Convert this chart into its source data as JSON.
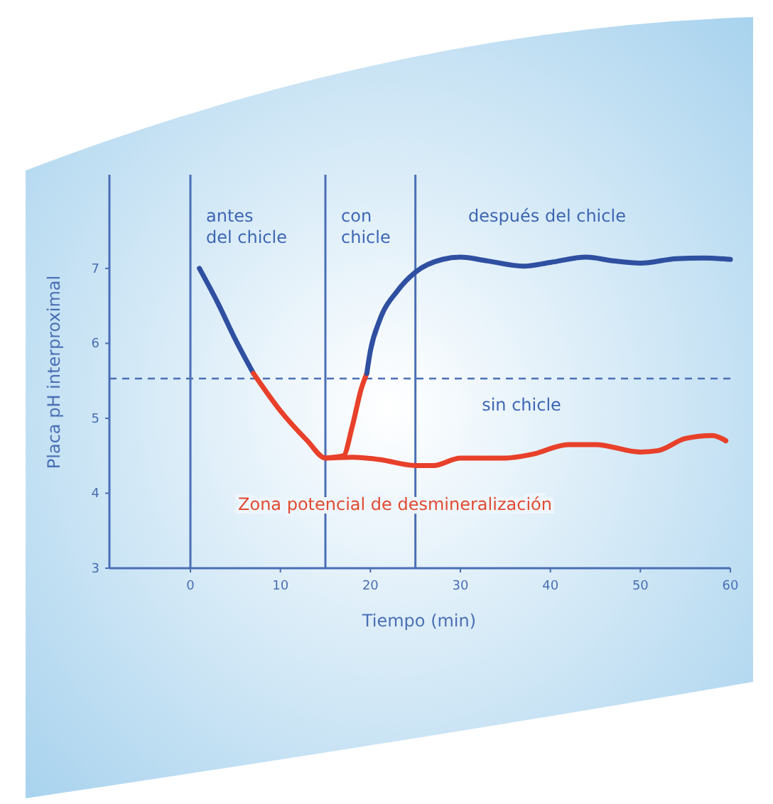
{
  "chart_data": {
    "type": "line",
    "xlabel": "Tiempo (min)",
    "ylabel": "Placa pH interproximal",
    "xlim": [
      -9,
      60
    ],
    "ylim": [
      3,
      8.25
    ],
    "xticks": [
      0,
      10,
      20,
      30,
      40,
      50,
      60
    ],
    "yticks": [
      3,
      4,
      5,
      6,
      7
    ],
    "grid": false,
    "line_style": "solid",
    "marker": "none",
    "series": [
      {
        "color": "#2f4fa0",
        "x": [
          1,
          3,
          5,
          7
        ],
        "values": [
          7.0,
          6.55,
          6.05,
          5.6
        ]
      },
      {
        "color": "#e8402a",
        "x": [
          7,
          10,
          13,
          15,
          18,
          21,
          25,
          27,
          30,
          35,
          38,
          42,
          45,
          50,
          52,
          55,
          58,
          59.5
        ],
        "values": [
          5.6,
          5.1,
          4.7,
          4.47,
          4.48,
          4.45,
          4.37,
          4.37,
          4.47,
          4.47,
          4.52,
          4.65,
          4.65,
          4.55,
          4.57,
          4.73,
          4.77,
          4.7
        ]
      },
      {
        "color": "#e8402a",
        "x": [
          15,
          17,
          18,
          19,
          19.6
        ],
        "values": [
          4.47,
          4.5,
          4.9,
          5.4,
          5.6
        ]
      },
      {
        "color": "#2f4fa0",
        "x": [
          19.6,
          20,
          21,
          23,
          25,
          28,
          30,
          33,
          37,
          40,
          44,
          47,
          50,
          54,
          57,
          60
        ],
        "values": [
          5.6,
          5.9,
          6.3,
          6.7,
          6.95,
          7.12,
          7.15,
          7.1,
          7.03,
          7.08,
          7.15,
          7.1,
          7.07,
          7.13,
          7.14,
          7.12
        ]
      }
    ],
    "ref_lines": [
      {
        "axis": "x",
        "value": 0,
        "color": "#4a6fb5",
        "line_style": "solid"
      },
      {
        "axis": "x",
        "value": 15,
        "color": "#4a6fb5",
        "line_style": "solid"
      },
      {
        "axis": "x",
        "value": 25,
        "color": "#4a6fb5",
        "line_style": "solid"
      },
      {
        "axis": "y",
        "value": 5.53,
        "color": "#4a6fb5",
        "line_style": "dashed"
      }
    ],
    "annotations": [
      "antes\ndel chicle",
      "con\nchicle",
      "después del chicle",
      "sin chicle",
      "Zona potencial de desmineralización"
    ]
  }
}
